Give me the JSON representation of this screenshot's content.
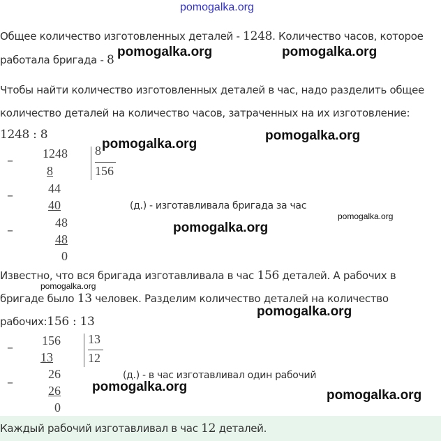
{
  "watermark_top": "pomogalka.org",
  "watermark": "pomogalka.org",
  "p1a": "Общее количество изготовленных деталей - ",
  "p1n": "1248",
  "p1b": ". Количество часов, которое",
  "p2a": "работала бригада - ",
  "p2n": "8",
  "p3": "Чтобы найти количество изготовленных деталей в час, надо разделить общее",
  "p4": "количество деталей на количество часов, затраченных на их изготовление:",
  "expr1": "1248 : 8",
  "div1": {
    "dividend": "1248",
    "divisor": "8",
    "quotient": "156",
    "steps": [
      "8",
      "44",
      "40",
      "48",
      "48",
      "0"
    ],
    "note": "(д.) - изготавливала бригада за час"
  },
  "p5a": "Известно, что вся бригада изготавливала в час ",
  "p5n": "156",
  "p5b": " деталей. А рабочих в",
  "p6a": "бригаде было ",
  "p6n": "13",
  "p6b": " человек. Разделим количество деталей на количество",
  "p7a": "рабочих:",
  "p7n": "156 : 13",
  "div2": {
    "dividend": "156",
    "divisor": "13",
    "quotient": "12",
    "steps": [
      "13",
      "26",
      "26",
      "0"
    ],
    "note": "(д.) - в час изготавливал один рабочий"
  },
  "answer_a": "Каждый рабочий изготавливал в час ",
  "answer_n": "12",
  "answer_b": " деталей.",
  "colors": {
    "answer_bg": "#e8f5ec",
    "watermark_top": "#3333cc"
  }
}
